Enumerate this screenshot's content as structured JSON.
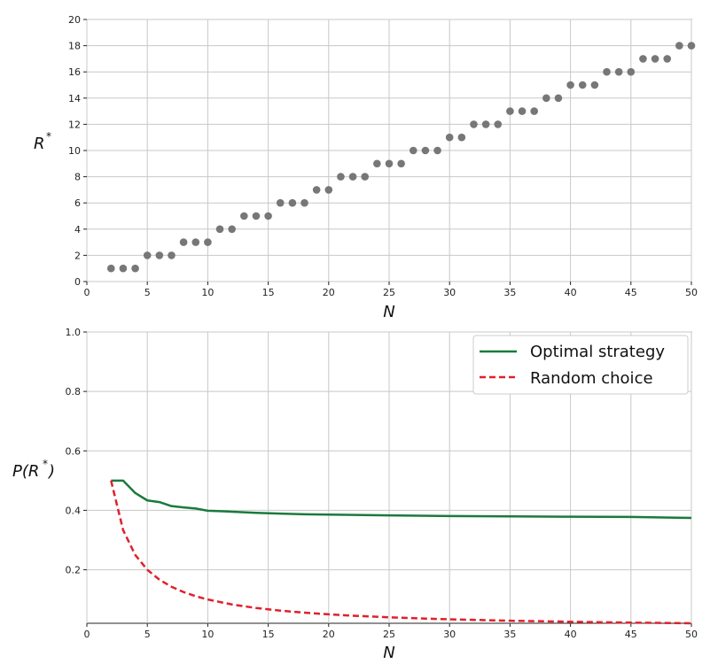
{
  "chart_data": [
    {
      "type": "scatter",
      "title": "",
      "xlabel": "N",
      "ylabel": "R*",
      "xlim": [
        0,
        50
      ],
      "ylim": [
        0,
        20
      ],
      "xticks": [
        "0",
        "5",
        "10",
        "15",
        "20",
        "25",
        "30",
        "35",
        "40",
        "45",
        "50"
      ],
      "yticks": [
        "0",
        "2",
        "4",
        "6",
        "8",
        "10",
        "12",
        "14",
        "16",
        "18",
        "20"
      ],
      "grid": true,
      "marker_color": "#777777",
      "series": [
        {
          "x": [
            2,
            3,
            4,
            5,
            6,
            7,
            8,
            9,
            10,
            11,
            12,
            13,
            14,
            15,
            16,
            17,
            18,
            19,
            20,
            21,
            22,
            23,
            24,
            25,
            26,
            27,
            28,
            29,
            30,
            31,
            32,
            33,
            34,
            35,
            36,
            37,
            38,
            39,
            40,
            41,
            42,
            43,
            44,
            45,
            46,
            47,
            48,
            49,
            50
          ],
          "values": [
            1,
            1,
            1,
            2,
            2,
            2,
            3,
            3,
            3,
            4,
            4,
            5,
            5,
            5,
            6,
            6,
            6,
            7,
            7,
            8,
            8,
            8,
            9,
            9,
            9,
            10,
            10,
            10,
            11,
            11,
            12,
            12,
            12,
            13,
            13,
            13,
            14,
            14,
            15,
            15,
            15,
            16,
            16,
            16,
            17,
            17,
            17,
            18,
            18
          ]
        }
      ]
    },
    {
      "type": "line",
      "title": "",
      "xlabel": "N",
      "ylabel": "P(R*)",
      "xlim": [
        0,
        50
      ],
      "ylim": [
        0.02,
        1.0
      ],
      "xticks": [
        "0",
        "5",
        "10",
        "15",
        "20",
        "25",
        "30",
        "35",
        "40",
        "45",
        "50"
      ],
      "yticks": [
        "0.2",
        "0.4",
        "0.6",
        "0.8",
        "1.0"
      ],
      "ytick_values": [
        0.2,
        0.4,
        0.6,
        0.8,
        1.0
      ],
      "grid": true,
      "legend": "top-right",
      "series": [
        {
          "name": "Optimal strategy",
          "color": "#1a7a3c",
          "style": "solid",
          "x": [
            2,
            3,
            4,
            5,
            6,
            7,
            8,
            9,
            10,
            12,
            14,
            16,
            18,
            20,
            25,
            30,
            35,
            40,
            45,
            50
          ],
          "values": [
            0.5,
            0.5,
            0.4583,
            0.4333,
            0.4278,
            0.4143,
            0.4098,
            0.406,
            0.3987,
            0.3955,
            0.3917,
            0.3889,
            0.3868,
            0.3858,
            0.383,
            0.3807,
            0.3795,
            0.3785,
            0.3778,
            0.3743
          ]
        },
        {
          "name": "Random choice",
          "color": "#e0202c",
          "style": "dashed",
          "x": [
            2,
            3,
            4,
            5,
            6,
            7,
            8,
            9,
            10,
            12,
            14,
            16,
            18,
            20,
            22,
            25,
            28,
            30,
            35,
            40,
            45,
            50
          ],
          "values": [
            0.5,
            0.3333,
            0.25,
            0.2,
            0.1667,
            0.1429,
            0.125,
            0.1111,
            0.1,
            0.0833,
            0.0714,
            0.0625,
            0.0556,
            0.05,
            0.0455,
            0.04,
            0.0357,
            0.0333,
            0.0286,
            0.025,
            0.0222,
            0.02
          ]
        }
      ]
    }
  ]
}
